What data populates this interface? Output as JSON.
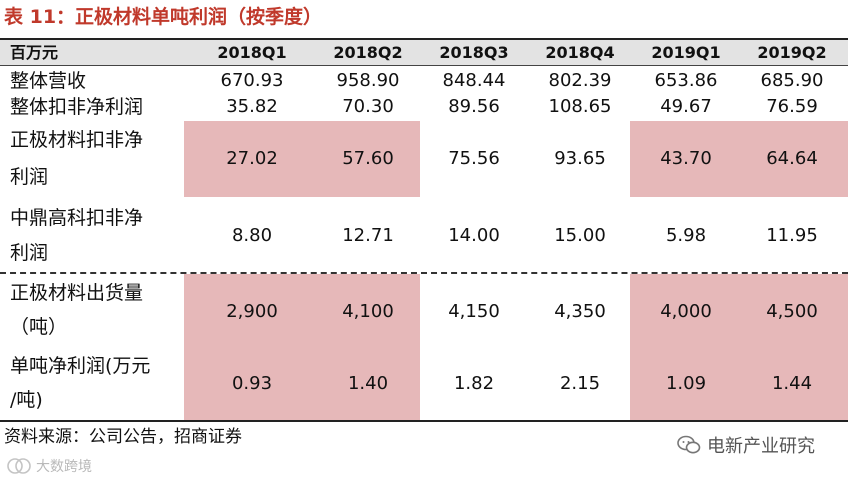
{
  "title": "表 11：正极材料单吨利润（按季度）",
  "header": {
    "unit": "百万元",
    "cols": [
      "2018Q1",
      "2018Q2",
      "2018Q3",
      "2018Q4",
      "2019Q1",
      "2019Q2"
    ]
  },
  "rows": [
    {
      "label": [
        "整体营收"
      ],
      "values": [
        "670.93",
        "958.90",
        "848.44",
        "802.39",
        "653.86",
        "685.90"
      ]
    },
    {
      "label": [
        "整体扣非净利润"
      ],
      "values": [
        "35.82",
        "70.30",
        "89.56",
        "108.65",
        "49.67",
        "76.59"
      ]
    },
    {
      "label": [
        "正极材料扣非净",
        "利润"
      ],
      "values": [
        "27.02",
        "57.60",
        "75.56",
        "93.65",
        "43.70",
        "64.64"
      ]
    },
    {
      "label": [
        "中鼎高科扣非净",
        "利润"
      ],
      "values": [
        "8.80",
        "12.71",
        "14.00",
        "15.00",
        "5.98",
        "11.95"
      ]
    },
    {
      "label": [
        "正极材料出货量",
        "（吨）"
      ],
      "values": [
        "2,900",
        "4,100",
        "4,150",
        "4,350",
        "4,000",
        "4,500"
      ]
    },
    {
      "label": [
        "单吨净利润(万元",
        "/吨)"
      ],
      "values": [
        "0.93",
        "1.40",
        "1.82",
        "2.15",
        "1.09",
        "1.44"
      ]
    }
  ],
  "source": "资料来源：公司公告，招商证券",
  "brand": "电新产业研究",
  "watermark": "大数跨境",
  "colors": {
    "title": "#c0392b",
    "highlight": "#e6b8b9",
    "header_bg": "#e3e3e3"
  }
}
